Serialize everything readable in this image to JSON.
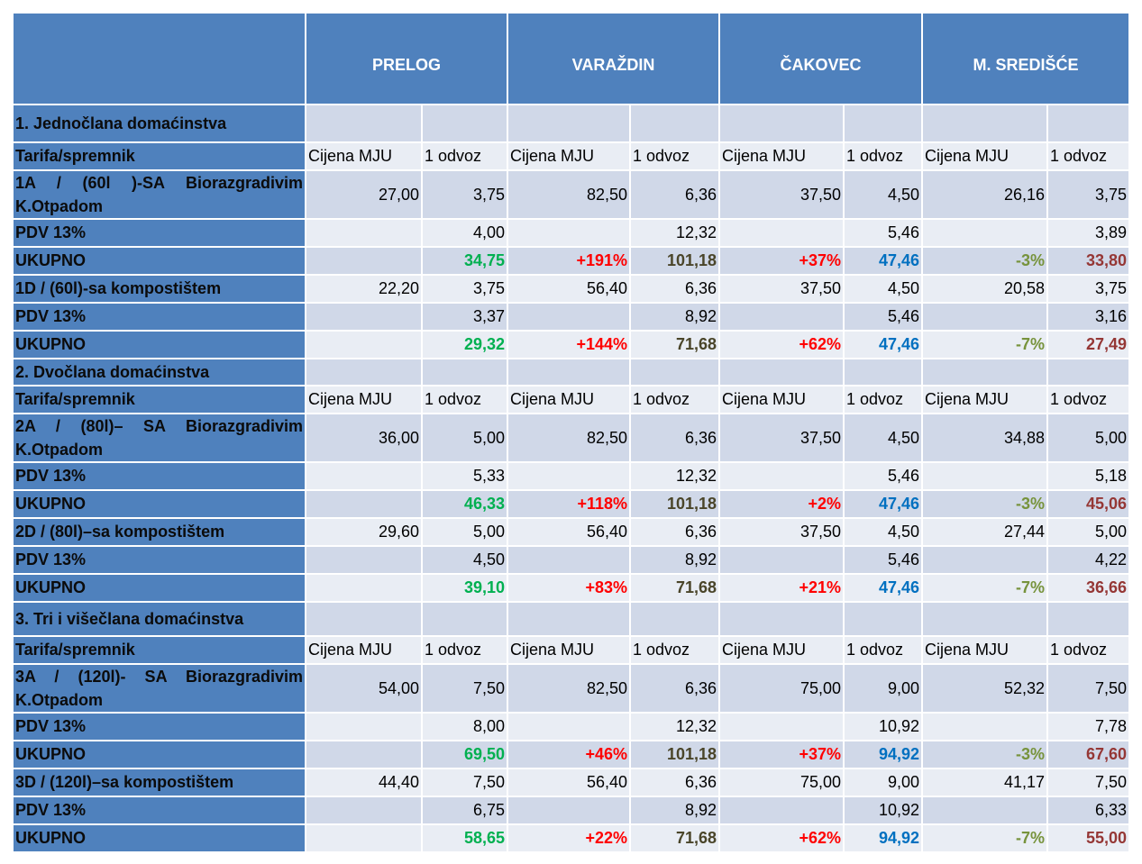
{
  "header": {
    "cities": [
      "PRELOG",
      "VARAŽDIN",
      "ČAKOVEC",
      "M. SREDIŠĆE"
    ]
  },
  "tarifa_label": "Tarifa/spremnik",
  "tarifa_headers": [
    "Cijena MJU",
    "1 odvoz",
    "Cijena MJU",
    "1 odvoz",
    "Cijena MJU",
    "1 odvoz",
    "Cijena MJU",
    "1 odvoz"
  ],
  "colors": {
    "header_bg": "#4F81BD",
    "row_dark": "#D0D8E8",
    "row_light": "#E9EDF4",
    "ukupno": [
      "#000000",
      "#00B050",
      "#FF0000",
      "#4A4529",
      "#FF0000",
      "#0070C0",
      "#77933C",
      "#953735"
    ]
  },
  "groups": [
    {
      "title": "1. Jednočlana domaćinstva",
      "rows": [
        {
          "label": "1A / (60l )-SA Biorazgradivim K.Otpadom",
          "type": "item",
          "cells": [
            "27,00",
            "3,75",
            "82,50",
            "6,36",
            "37,50",
            "4,50",
            "26,16",
            "3,75"
          ]
        },
        {
          "label": "PDV 13%",
          "type": "pdv",
          "cells": [
            "",
            "4,00",
            "",
            "12,32",
            "",
            "5,46",
            "",
            "3,89"
          ]
        },
        {
          "label": "UKUPNO",
          "type": "total",
          "cells": [
            "",
            "34,75",
            "+191%",
            "101,18",
            "+37%",
            "47,46",
            "-3%",
            "33,80"
          ]
        },
        {
          "label": "1D / (60l)-sa kompostištem",
          "type": "item",
          "cells": [
            "22,20",
            "3,75",
            "56,40",
            "6,36",
            "37,50",
            "4,50",
            "20,58",
            "3,75"
          ]
        },
        {
          "label": "PDV 13%",
          "type": "pdv",
          "cells": [
            "",
            "3,37",
            "",
            "8,92",
            "",
            "5,46",
            "",
            "3,16"
          ]
        },
        {
          "label": "UKUPNO",
          "type": "total",
          "cells": [
            "",
            "29,32",
            "+144%",
            "71,68",
            "+62%",
            "47,46",
            "-7%",
            "27,49"
          ]
        }
      ]
    },
    {
      "title": "2. Dvočlana domaćinstva",
      "rows": [
        {
          "label": "2A / (80l)– SA Biorazgradivim K.Otpadom",
          "type": "item",
          "cells": [
            "36,00",
            "5,00",
            "82,50",
            "6,36",
            "37,50",
            "4,50",
            "34,88",
            "5,00"
          ]
        },
        {
          "label": "PDV 13%",
          "type": "pdv",
          "cells": [
            "",
            "5,33",
            "",
            "12,32",
            "",
            "5,46",
            "",
            "5,18"
          ]
        },
        {
          "label": "UKUPNO",
          "type": "total",
          "cells": [
            "",
            "46,33",
            "+118%",
            "101,18",
            "+2%",
            "47,46",
            "-3%",
            "45,06"
          ]
        },
        {
          "label": "2D / (80l)–sa kompostištem",
          "type": "item",
          "cells": [
            "29,60",
            "5,00",
            "56,40",
            "6,36",
            "37,50",
            "4,50",
            "27,44",
            "5,00"
          ]
        },
        {
          "label": "PDV 13%",
          "type": "pdv",
          "cells": [
            "",
            "4,50",
            "",
            "8,92",
            "",
            "5,46",
            "",
            "4,22"
          ]
        },
        {
          "label": "UKUPNO",
          "type": "total",
          "cells": [
            "",
            "39,10",
            "+83%",
            "71,68",
            "+21%",
            "47,46",
            "-7%",
            "36,66"
          ]
        }
      ]
    },
    {
      "title": "3. Tri i višečlana domaćinstva",
      "rows": [
        {
          "label": "3A / (120l)- SA Biorazgradivim K.Otpadom",
          "type": "item",
          "cells": [
            "54,00",
            "7,50",
            "82,50",
            "6,36",
            "75,00",
            "9,00",
            "52,32",
            "7,50"
          ]
        },
        {
          "label": "PDV 13%",
          "type": "pdv",
          "cells": [
            "",
            "8,00",
            "",
            "12,32",
            "",
            "10,92",
            "",
            "7,78"
          ]
        },
        {
          "label": "UKUPNO",
          "type": "total",
          "cells": [
            "",
            "69,50",
            "+46%",
            "101,18",
            "+37%",
            "94,92",
            "-3%",
            "67,60"
          ]
        },
        {
          "label": "3D / (120l)–sa kompostištem",
          "type": "item",
          "cells": [
            "44,40",
            "7,50",
            "56,40",
            "6,36",
            "75,00",
            "9,00",
            "41,17",
            "7,50"
          ]
        },
        {
          "label": "PDV 13%",
          "type": "pdv",
          "cells": [
            "",
            "6,75",
            "",
            "8,92",
            "",
            "10,92",
            "",
            "6,33"
          ]
        },
        {
          "label": "UKUPNO",
          "type": "total",
          "cells": [
            "",
            "58,65",
            "+22%",
            "71,68",
            "+62%",
            "94,92",
            "-7%",
            "55,00"
          ]
        }
      ]
    }
  ]
}
